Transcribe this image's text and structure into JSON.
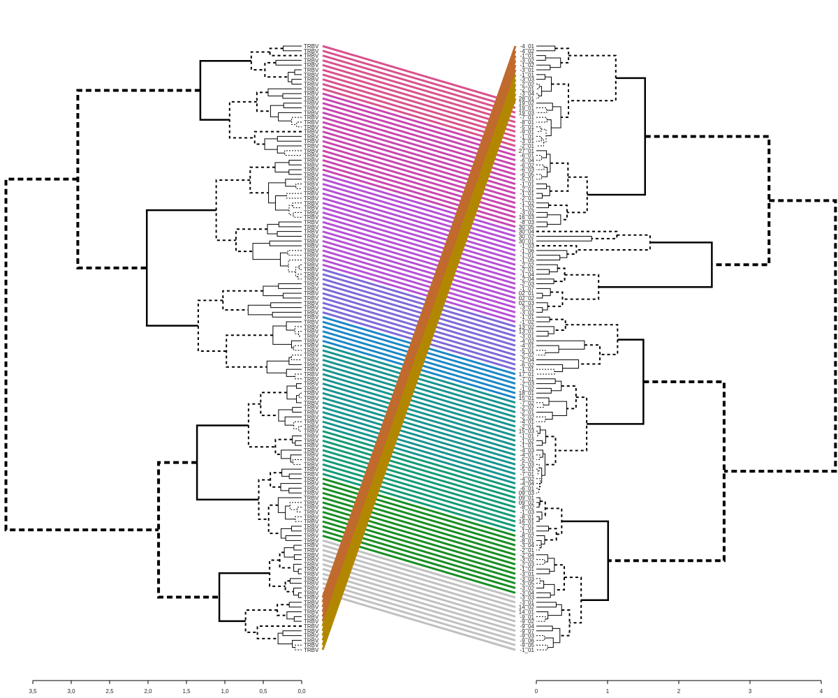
{
  "figure": {
    "type": "tanglegram",
    "left_panel": {
      "leaf_prefix": "TRBV",
      "leaf_count": 128,
      "axis": {
        "ticks": [
          "3,5",
          "3,0",
          "2,5",
          "2,0",
          "1,5",
          "1,0",
          "0,5",
          "0,0"
        ],
        "range": [
          3.5,
          0.0
        ],
        "direction": "decreasing-left-to-right"
      },
      "root_height": 3.85
    },
    "right_panel": {
      "leaf_count": 128,
      "leaf_labels": [
        "-4_01",
        "-4_02",
        "-1_01",
        "-3_02",
        "-1_02",
        "-3_01",
        "-1_01",
        "-3_03",
        "-2_02",
        "-2_01",
        "-3_04",
        "28_01",
        "19_02",
        "19_01",
        "19_03",
        "-7_01",
        "-8_01",
        "-5_01",
        "-9_01",
        "-1_01",
        "-3_01",
        "-2_01",
        "27_01",
        "-6_01",
        "-6_04",
        "-6_02",
        "-6_03",
        "-6_05",
        "-5_01",
        "-1_01",
        "-2_01",
        "-1_01",
        "-2_01",
        "-1_02",
        "-1_02",
        "-3_02",
        "16_03",
        "-8_03",
        "30_05",
        "30_04",
        "30_02",
        "30_01",
        "-1_03",
        "-1_06",
        "-1_01",
        "-1_05",
        "-2_02",
        "-2_01",
        "-1_04",
        "-2_04",
        "-2_03",
        "-1_07",
        "02_01",
        "02_02",
        "02_03",
        "-3_01",
        "-3_02",
        "-1_01",
        "-1_02",
        "13_02",
        "13_01",
        "-3_01",
        "-4_02",
        "-4_01",
        "-5_01",
        "-2_02",
        "-2_04",
        "-6_02",
        "-1_01",
        "17_01",
        "-7_01",
        "-2_03",
        "-1_02",
        "18_01",
        "15_01",
        "-7_02",
        "-2_02",
        "-2_01",
        "-2_02",
        "-4_01",
        "-2_01",
        "15_03",
        "-1_01",
        "-1_02",
        "-1_01",
        "-4_03",
        "-4_01",
        "-5_02",
        "-5_03",
        "-5_01",
        "-7_01",
        "-4_02",
        "-4_04",
        "-6_01",
        "09_03",
        "09_01",
        "09_02",
        "-8_02",
        "-1_03",
        "-8_01",
        "16_01",
        "-2_01",
        "-1_01",
        "-8_02",
        "-8_01",
        "-3_04",
        "-2_01",
        "-2_04",
        "-3_02",
        "-2_03",
        "-1_01",
        "-3_01",
        "-3_03",
        "-3_05",
        "-3_02",
        "-3_04",
        "-3_03",
        "-3_01",
        "14_02",
        "14_01",
        "-9_01",
        "-9_02",
        "-9_04",
        "-9_07",
        "-9_03",
        "-9_06",
        "-9_05",
        "-1_01"
      ],
      "axis": {
        "ticks": [
          "0",
          "1",
          "2",
          "3",
          "4"
        ],
        "range": [
          0,
          4
        ]
      },
      "root_height": 4.2
    },
    "connector_groups": [
      {
        "name": "g1",
        "color": "#d9508e",
        "count": 10
      },
      {
        "name": "g2",
        "color": "#c845b0",
        "count": 17
      },
      {
        "name": "g3",
        "color": "#b64fd6",
        "count": 20
      },
      {
        "name": "g4",
        "color": "#7d68d8",
        "count": 10
      },
      {
        "name": "g5",
        "color": "#1a87c8",
        "count": 6
      },
      {
        "name": "g6",
        "color": "#16948f",
        "count": 18
      },
      {
        "name": "g7",
        "color": "#129a77",
        "count": 10
      },
      {
        "name": "g8",
        "color": "#178e22",
        "count": 13
      },
      {
        "name": "g9",
        "color": "#c0c0c0",
        "count": 12
      },
      {
        "name": "g10",
        "color": "#c06a2e",
        "count": 6
      },
      {
        "name": "g11",
        "color": "#b28700",
        "count": 6
      }
    ]
  }
}
